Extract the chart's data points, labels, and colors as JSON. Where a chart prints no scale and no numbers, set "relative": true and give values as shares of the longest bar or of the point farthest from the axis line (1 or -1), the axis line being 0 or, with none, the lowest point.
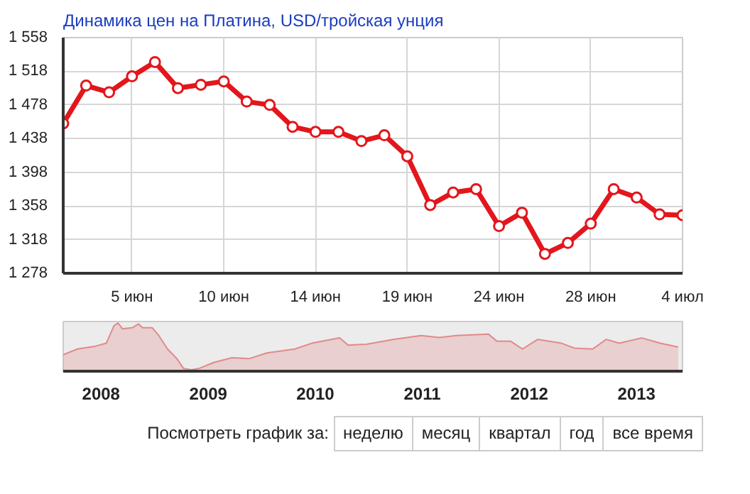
{
  "chart_data": [
    {
      "type": "line",
      "title": "Динамика цен на Платина, USD/тройская унция",
      "categories": [
        null,
        null,
        null,
        "5 июн",
        null,
        null,
        null,
        "10 июн",
        null,
        null,
        null,
        "14 июн",
        null,
        null,
        null,
        "19 июн",
        null,
        null,
        null,
        "24 июн",
        null,
        null,
        null,
        "28 июн",
        null,
        null,
        null,
        "4 июл"
      ],
      "series": [
        {
          "color": "#e3161c",
          "values": [
            1456,
            1501,
            1493,
            1512,
            1529,
            1498,
            1502,
            1506,
            1482,
            1478,
            1452,
            1446,
            1446,
            1435,
            1442,
            1417,
            1359,
            1374,
            1378,
            1334,
            1350,
            1301,
            1314,
            1337,
            1378,
            1368,
            1348,
            1347
          ]
        }
      ],
      "ylim": [
        1278,
        1558
      ],
      "yticks": [
        {
          "value": 1278,
          "label": "1 278"
        },
        {
          "value": 1318,
          "label": "1 318"
        },
        {
          "value": 1358,
          "label": "1 358"
        },
        {
          "value": 1398,
          "label": "1 398"
        },
        {
          "value": 1438,
          "label": "1 438"
        },
        {
          "value": 1478,
          "label": "1 478"
        },
        {
          "value": 1518,
          "label": "1 518"
        },
        {
          "value": 1558,
          "label": "1 558"
        }
      ],
      "grid": true,
      "marker": "circle",
      "line_style": "solid"
    },
    {
      "type": "area",
      "relative": true,
      "tick_labels": "x",
      "x": [
        "2007-08-25",
        "2007-10-12",
        "2007-12-14",
        "2008-01-19",
        "2008-02-14",
        "2008-02-28",
        "2008-03-14",
        "2008-04-16",
        "2008-05-08",
        "2008-05-22",
        "2008-06-24",
        "2008-07-16",
        "2008-08-15",
        "2008-09-16",
        "2008-10-08",
        "2008-11-03",
        "2008-12-02",
        "2009-01-19",
        "2009-03-23",
        "2009-05-20",
        "2009-07-20",
        "2009-10-23",
        "2009-12-20",
        "2010-03-25",
        "2010-04-23",
        "2010-06-25",
        "2010-09-24",
        "2010-12-28",
        "2011-02-28",
        "2011-04-27",
        "2011-08-15",
        "2011-09-13",
        "2011-10-30",
        "2011-12-09",
        "2012-01-30",
        "2012-04-20",
        "2012-06-03",
        "2012-08-04",
        "2012-09-20",
        "2012-11-03",
        "2013-01-19",
        "2013-03-23",
        "2013-05-23"
      ],
      "series": [
        {
          "color": "#e08a8a",
          "values": [
            0.34,
            0.46,
            0.52,
            0.58,
            0.94,
            1.0,
            0.88,
            0.9,
            0.98,
            0.9,
            0.9,
            0.74,
            0.46,
            0.26,
            0.06,
            0.03,
            0.06,
            0.18,
            0.28,
            0.26,
            0.38,
            0.46,
            0.58,
            0.69,
            0.54,
            0.56,
            0.66,
            0.74,
            0.7,
            0.74,
            0.77,
            0.62,
            0.62,
            0.46,
            0.66,
            0.58,
            0.48,
            0.46,
            0.66,
            0.58,
            0.69,
            0.58,
            0.5
          ]
        }
      ],
      "xlim": [
        "2007-08-25",
        "2013-06-07"
      ],
      "xticks": [
        "2008",
        "2009",
        "2010",
        "2011",
        "2012",
        "2013"
      ],
      "annotations": [
        "Посмотреть график за:",
        "неделю",
        "месяц",
        "квартал",
        "год",
        "все время"
      ]
    }
  ]
}
